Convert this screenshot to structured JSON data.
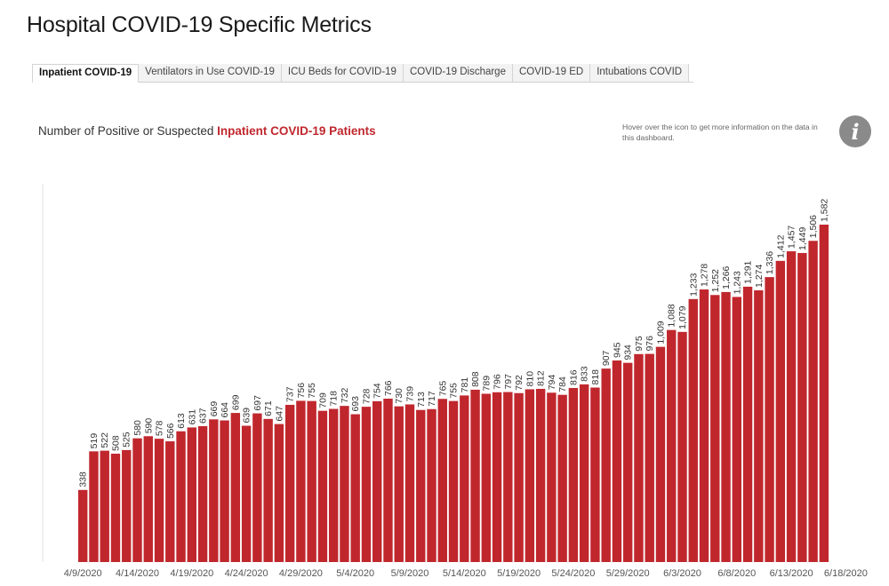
{
  "page": {
    "title": "Hospital COVID-19 Specific Metrics"
  },
  "tabs": [
    {
      "label": "Inpatient COVID-19",
      "active": true
    },
    {
      "label": "Ventilators in Use COVID-19",
      "active": false
    },
    {
      "label": "ICU Beds for COVID-19",
      "active": false
    },
    {
      "label": "COVID-19 Discharge",
      "active": false
    },
    {
      "label": "COVID-19 ED",
      "active": false
    },
    {
      "label": "Intubations COVID",
      "active": false
    }
  ],
  "heading": {
    "prefix": "Number of Positive or Suspected ",
    "highlight": "Inpatient COVID-19 Patients"
  },
  "info": {
    "note": "Hover over the icon to get more information on the data in this dashboard.",
    "icon": "info-icon"
  },
  "colors": {
    "bar": "#c0272d",
    "accent": "#c0272d",
    "icon": "#8a8a8a"
  },
  "chart_data": {
    "type": "bar",
    "title": "",
    "xlabel": "",
    "ylabel": "",
    "ylim": [
      0,
      1582
    ],
    "grid": false,
    "x_tick_labels": [
      "4/9/2020",
      "4/14/2020",
      "4/19/2020",
      "4/24/2020",
      "4/29/2020",
      "5/4/2020",
      "5/9/2020",
      "5/14/2020",
      "5/19/2020",
      "5/24/2020",
      "5/29/2020",
      "6/3/2020",
      "6/8/2020",
      "6/13/2020",
      "6/18/2020"
    ],
    "x_tick_every": 5,
    "values": [
      338,
      519,
      522,
      508,
      525,
      580,
      590,
      578,
      566,
      613,
      631,
      637,
      669,
      664,
      699,
      639,
      697,
      671,
      647,
      737,
      756,
      755,
      709,
      718,
      732,
      693,
      728,
      754,
      766,
      730,
      739,
      713,
      717,
      765,
      755,
      781,
      808,
      789,
      796,
      797,
      792,
      810,
      812,
      794,
      784,
      816,
      833,
      818,
      907,
      945,
      934,
      975,
      976,
      1009,
      1088,
      1079,
      1233,
      1278,
      1252,
      1266,
      1243,
      1291,
      1274,
      1336,
      1412,
      1457,
      1449,
      1506,
      1582
    ],
    "labels": [
      "338",
      "519",
      "522",
      "508",
      "525",
      "580",
      "590",
      "578",
      "566",
      "613",
      "631",
      "637",
      "669",
      "664",
      "699",
      "639",
      "697",
      "671",
      "647",
      "737",
      "756",
      "755",
      "709",
      "718",
      "732",
      "693",
      "728",
      "754",
      "766",
      "730",
      "739",
      "713",
      "717",
      "765",
      "755",
      "781",
      "808",
      "789",
      "796",
      "797",
      "792",
      "810",
      "812",
      "794",
      "784",
      "816",
      "833",
      "818",
      "907",
      "945",
      "934",
      "975",
      "976",
      "1,009",
      "1,088",
      "1,079",
      "1,233",
      "1,278",
      "1,252",
      "1,266",
      "1,243",
      "1,291",
      "1,274",
      "1,336",
      "1,412",
      "1,457",
      "1,449",
      "1,506",
      "1,582"
    ]
  }
}
